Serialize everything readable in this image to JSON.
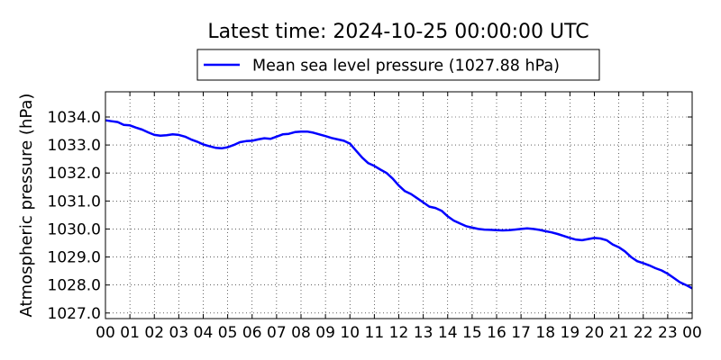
{
  "chart_data": {
    "type": "line",
    "title": "Latest time: 2024-10-25 00:00:00 UTC",
    "xlabel": "",
    "ylabel": "Atmospheric pressure (hPa)",
    "x_tick_labels": [
      "00",
      "01",
      "02",
      "03",
      "04",
      "05",
      "06",
      "07",
      "08",
      "09",
      "10",
      "11",
      "12",
      "13",
      "14",
      "15",
      "16",
      "17",
      "18",
      "19",
      "20",
      "21",
      "22",
      "23",
      "00"
    ],
    "y_tick_labels": [
      "1027.0",
      "1028.0",
      "1029.0",
      "1030.0",
      "1031.0",
      "1032.0",
      "1033.0",
      "1034.0"
    ],
    "x_unit": "hour",
    "xlim": [
      0,
      24
    ],
    "ylim": [
      1026.8,
      1034.9
    ],
    "grid": true,
    "legend_position": "top-center",
    "series": [
      {
        "name": "Mean sea level pressure (1027.88 hPa)",
        "color": "#0000ff",
        "x": [
          0,
          0.25,
          0.5,
          0.75,
          1,
          1.25,
          1.5,
          1.75,
          2,
          2.25,
          2.5,
          2.75,
          3,
          3.25,
          3.5,
          3.75,
          4,
          4.25,
          4.5,
          4.75,
          5,
          5.25,
          5.5,
          5.75,
          6,
          6.25,
          6.5,
          6.75,
          7,
          7.25,
          7.5,
          7.75,
          8,
          8.25,
          8.5,
          8.75,
          9,
          9.25,
          9.5,
          9.75,
          10,
          10.25,
          10.5,
          10.75,
          11,
          11.25,
          11.5,
          11.75,
          12,
          12.25,
          12.5,
          12.75,
          13,
          13.25,
          13.5,
          13.75,
          14,
          14.25,
          14.5,
          14.75,
          15,
          15.25,
          15.5,
          15.75,
          16,
          16.25,
          16.5,
          16.75,
          17,
          17.25,
          17.5,
          17.75,
          18,
          18.25,
          18.5,
          18.75,
          19,
          19.25,
          19.5,
          19.75,
          20,
          20.25,
          20.5,
          20.75,
          21,
          21.25,
          21.5,
          21.75,
          22,
          22.25,
          22.5,
          22.75,
          23,
          23.25,
          23.5,
          23.75,
          24
        ],
        "y": [
          1033.88,
          1033.85,
          1033.82,
          1033.72,
          1033.7,
          1033.62,
          1033.55,
          1033.45,
          1033.36,
          1033.33,
          1033.35,
          1033.38,
          1033.36,
          1033.3,
          1033.2,
          1033.12,
          1033.02,
          1032.96,
          1032.9,
          1032.88,
          1032.92,
          1033.0,
          1033.1,
          1033.14,
          1033.15,
          1033.2,
          1033.24,
          1033.22,
          1033.3,
          1033.38,
          1033.4,
          1033.46,
          1033.48,
          1033.48,
          1033.44,
          1033.38,
          1033.32,
          1033.25,
          1033.2,
          1033.15,
          1033.05,
          1032.8,
          1032.55,
          1032.35,
          1032.25,
          1032.12,
          1032.0,
          1031.8,
          1031.55,
          1031.35,
          1031.25,
          1031.1,
          1030.95,
          1030.8,
          1030.75,
          1030.65,
          1030.45,
          1030.3,
          1030.2,
          1030.1,
          1030.05,
          1030.0,
          1029.98,
          1029.97,
          1029.96,
          1029.95,
          1029.96,
          1029.98,
          1030.0,
          1030.02,
          1030.0,
          1029.97,
          1029.92,
          1029.88,
          1029.82,
          1029.75,
          1029.68,
          1029.62,
          1029.6,
          1029.64,
          1029.68,
          1029.66,
          1029.6,
          1029.45,
          1029.35,
          1029.2,
          1029.0,
          1028.85,
          1028.78,
          1028.7,
          1028.6,
          1028.52,
          1028.4,
          1028.25,
          1028.1,
          1028.0,
          1027.88
        ]
      }
    ]
  }
}
